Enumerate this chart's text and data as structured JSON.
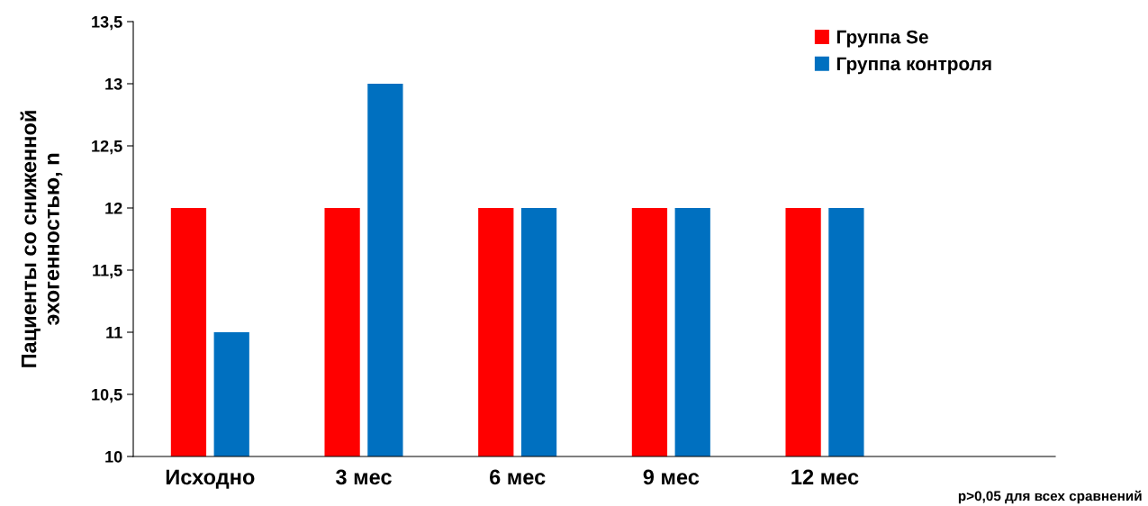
{
  "chart_data": {
    "type": "bar",
    "ylabel": "Пациенты со сниженной\nэхогенностью, n",
    "categories": [
      "Исходно",
      "3 мес",
      "6 мес",
      "9 мес",
      "12 мес",
      null
    ],
    "series": [
      {
        "name": "Группа Se",
        "color": "#ff0000",
        "values": [
          12,
          12,
          12,
          12,
          12,
          null
        ]
      },
      {
        "name": "Группа контроля",
        "color": "#0070c0",
        "values": [
          11,
          13,
          12,
          12,
          12,
          null
        ]
      }
    ],
    "ylim": [
      10,
      13.5
    ],
    "yticks": [
      {
        "value": 10,
        "label": "10"
      },
      {
        "value": 10.5,
        "label": "10,5"
      },
      {
        "value": 11,
        "label": "11"
      },
      {
        "value": 11.5,
        "label": "11,5"
      },
      {
        "value": 12,
        "label": "12"
      },
      {
        "value": 12.5,
        "label": "12,5"
      },
      {
        "value": 13,
        "label": "13"
      },
      {
        "value": 13.5,
        "label": "13,5"
      }
    ],
    "grid": false,
    "legend": "top right",
    "annotations": [
      "p>0,05 для всех сравнений"
    ]
  }
}
